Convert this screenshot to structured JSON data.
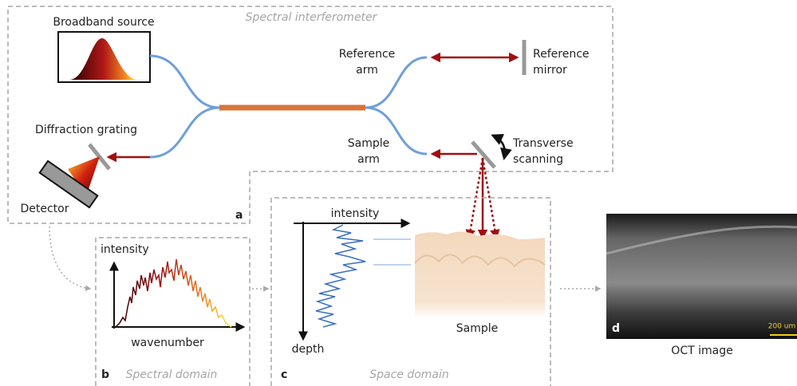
{
  "panel_a": {
    "title": "Spectral interferometer",
    "label": "a",
    "broadband_source": "Broadband source",
    "reference_arm": [
      "Reference",
      "arm"
    ],
    "reference_mirror": [
      "Reference",
      "mirror"
    ],
    "diffraction_grating": "Diffraction grating",
    "sample_arm": [
      "Sample",
      "arm"
    ],
    "transverse_scanning": [
      "Transverse",
      "scanning"
    ],
    "detector": "Detector"
  },
  "panel_b": {
    "label": "b",
    "title": "Spectral domain",
    "y_axis": "intensity",
    "x_axis": "wavenumber"
  },
  "panel_c": {
    "label": "c",
    "title": "Space domain",
    "x_axis": "intensity",
    "y_axis": "depth",
    "sample": "Sample"
  },
  "panel_d": {
    "label": "d",
    "scale_bar": "200 um",
    "caption": "OCT image"
  }
}
